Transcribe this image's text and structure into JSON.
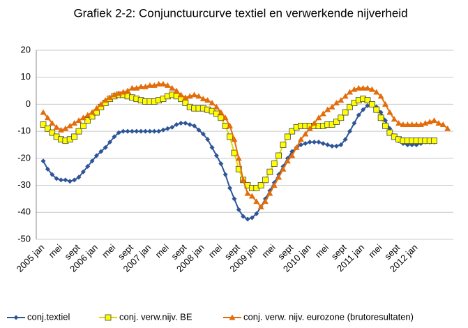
{
  "chart_data": {
    "type": "line",
    "title": "Grafiek 2-2: Conjunctuurcurve textiel en verwerkende nijverheid",
    "categories": [
      "2005 jan",
      null,
      null,
      null,
      "mei",
      null,
      null,
      null,
      "sept",
      null,
      null,
      null,
      "2006 jan",
      null,
      null,
      null,
      "mei",
      null,
      null,
      null,
      "sept",
      null,
      null,
      null,
      "2007 jan",
      null,
      null,
      null,
      "mei",
      null,
      null,
      null,
      "sept",
      null,
      null,
      null,
      "2008 jan",
      null,
      null,
      null,
      "mei",
      null,
      null,
      null,
      "sept",
      null,
      null,
      null,
      "2009 jan",
      null,
      null,
      null,
      "mei",
      null,
      null,
      null,
      "sept",
      null,
      null,
      null,
      "2010 jan",
      null,
      null,
      null,
      "mei",
      null,
      null,
      null,
      "sept",
      null,
      null,
      null,
      "2011 jan",
      null,
      null,
      null,
      "mei",
      null,
      null,
      null,
      "sept",
      null,
      null,
      null,
      "2012 jan",
      null,
      null,
      null,
      null,
      null,
      null,
      null
    ],
    "series": [
      {
        "name": "conj.textiel",
        "color": "#2e5597",
        "marker": "diamond",
        "values": [
          -21,
          -24,
          -26,
          -27.5,
          -28,
          -28,
          -28.5,
          -28,
          -27,
          -25,
          -23,
          -21,
          -19,
          -17.5,
          -16,
          -14,
          -12,
          -10.5,
          -10,
          -10,
          -10,
          -10,
          -10,
          -10,
          -10,
          -10,
          -10,
          -9.5,
          -9,
          -8.5,
          -7.5,
          -7,
          -7,
          -7.5,
          -8,
          -9.5,
          -11,
          -13,
          -16,
          -19,
          -22,
          -26,
          -31,
          -35,
          -39,
          -41.5,
          -42.5,
          -42,
          -40.5,
          -38,
          -35,
          -32,
          -29,
          -26,
          -23,
          -20,
          -17.5,
          -16,
          -15,
          -14.5,
          -14,
          -14,
          -14,
          -14.5,
          -15,
          -15.5,
          -15.5,
          -15,
          -13,
          -10,
          -7,
          -4,
          -2,
          -0.5,
          0,
          -1,
          -3,
          -6,
          -9,
          -12,
          -13.5,
          -14.5,
          -15,
          -15,
          -15,
          -14.5,
          -14,
          -14,
          -14,
          null,
          null,
          null
        ]
      },
      {
        "name": "conj. verw.nijv. BE",
        "color": "#ffff00",
        "marker": "square",
        "values": [
          -7.5,
          -9,
          -10.5,
          -12,
          -13,
          -13.5,
          -13,
          -12,
          -10,
          -8,
          -6,
          -4.5,
          -3,
          -1,
          0.5,
          2,
          3,
          3.5,
          3.5,
          3,
          2.5,
          2,
          1.5,
          1,
          1,
          1,
          1.5,
          2,
          3,
          3.5,
          3,
          2,
          0.5,
          -1,
          -1.5,
          -1.5,
          -1.5,
          -2,
          -2.5,
          -3.5,
          -5,
          -8,
          -12,
          -18,
          -24,
          -28,
          -30,
          -31,
          -31,
          -30,
          -28,
          -25,
          -22,
          -19,
          -15,
          -12,
          -10,
          -8.5,
          -8,
          -8,
          -8,
          -8,
          -8,
          -8,
          -7.5,
          -7.5,
          -6.5,
          -5,
          -3,
          -1,
          0.5,
          1.5,
          2,
          1.5,
          0,
          -2,
          -5,
          -8,
          -10.5,
          -12,
          -13,
          -13.5,
          -13.5,
          -13.5,
          -13.5,
          -13.5,
          -13.5,
          -13.5,
          -13.5,
          null,
          null,
          null
        ]
      },
      {
        "name": "conj. verw. nijv. eurozone (brutoresultaten)",
        "color": "#e46c0a",
        "marker": "triangle",
        "values": [
          -3,
          -5,
          -7,
          -8.5,
          -9.5,
          -9,
          -8,
          -7,
          -6,
          -5,
          -4,
          -3,
          -1.5,
          0,
          1.5,
          2.5,
          3.5,
          4,
          4.5,
          5,
          6,
          6,
          6.5,
          6.5,
          7,
          7,
          7.5,
          7.5,
          7,
          6,
          5,
          3.5,
          2.5,
          3,
          3.5,
          3,
          2,
          1.5,
          0.5,
          -1,
          -3,
          -5,
          -8,
          -13,
          -20,
          -28,
          -33,
          -34,
          -36,
          -38,
          -36,
          -33,
          -30,
          -27,
          -24,
          -21,
          -19,
          -16,
          -13,
          -11,
          -9,
          -7,
          -5,
          -3.5,
          -2,
          -1,
          0.5,
          1.5,
          3,
          4.5,
          5.5,
          6,
          6,
          6,
          5.5,
          4.5,
          3,
          0,
          -3,
          -5.5,
          -7,
          -7.5,
          -7.5,
          -7.5,
          -7.5,
          -7.5,
          -7,
          -6.5,
          -6,
          -7,
          -7.5,
          -9
        ]
      }
    ],
    "ylim": [
      -50,
      20
    ],
    "yticks": [
      -50,
      -40,
      -30,
      -20,
      -10,
      0,
      10,
      20
    ],
    "grid": true,
    "legend": "bottom"
  }
}
